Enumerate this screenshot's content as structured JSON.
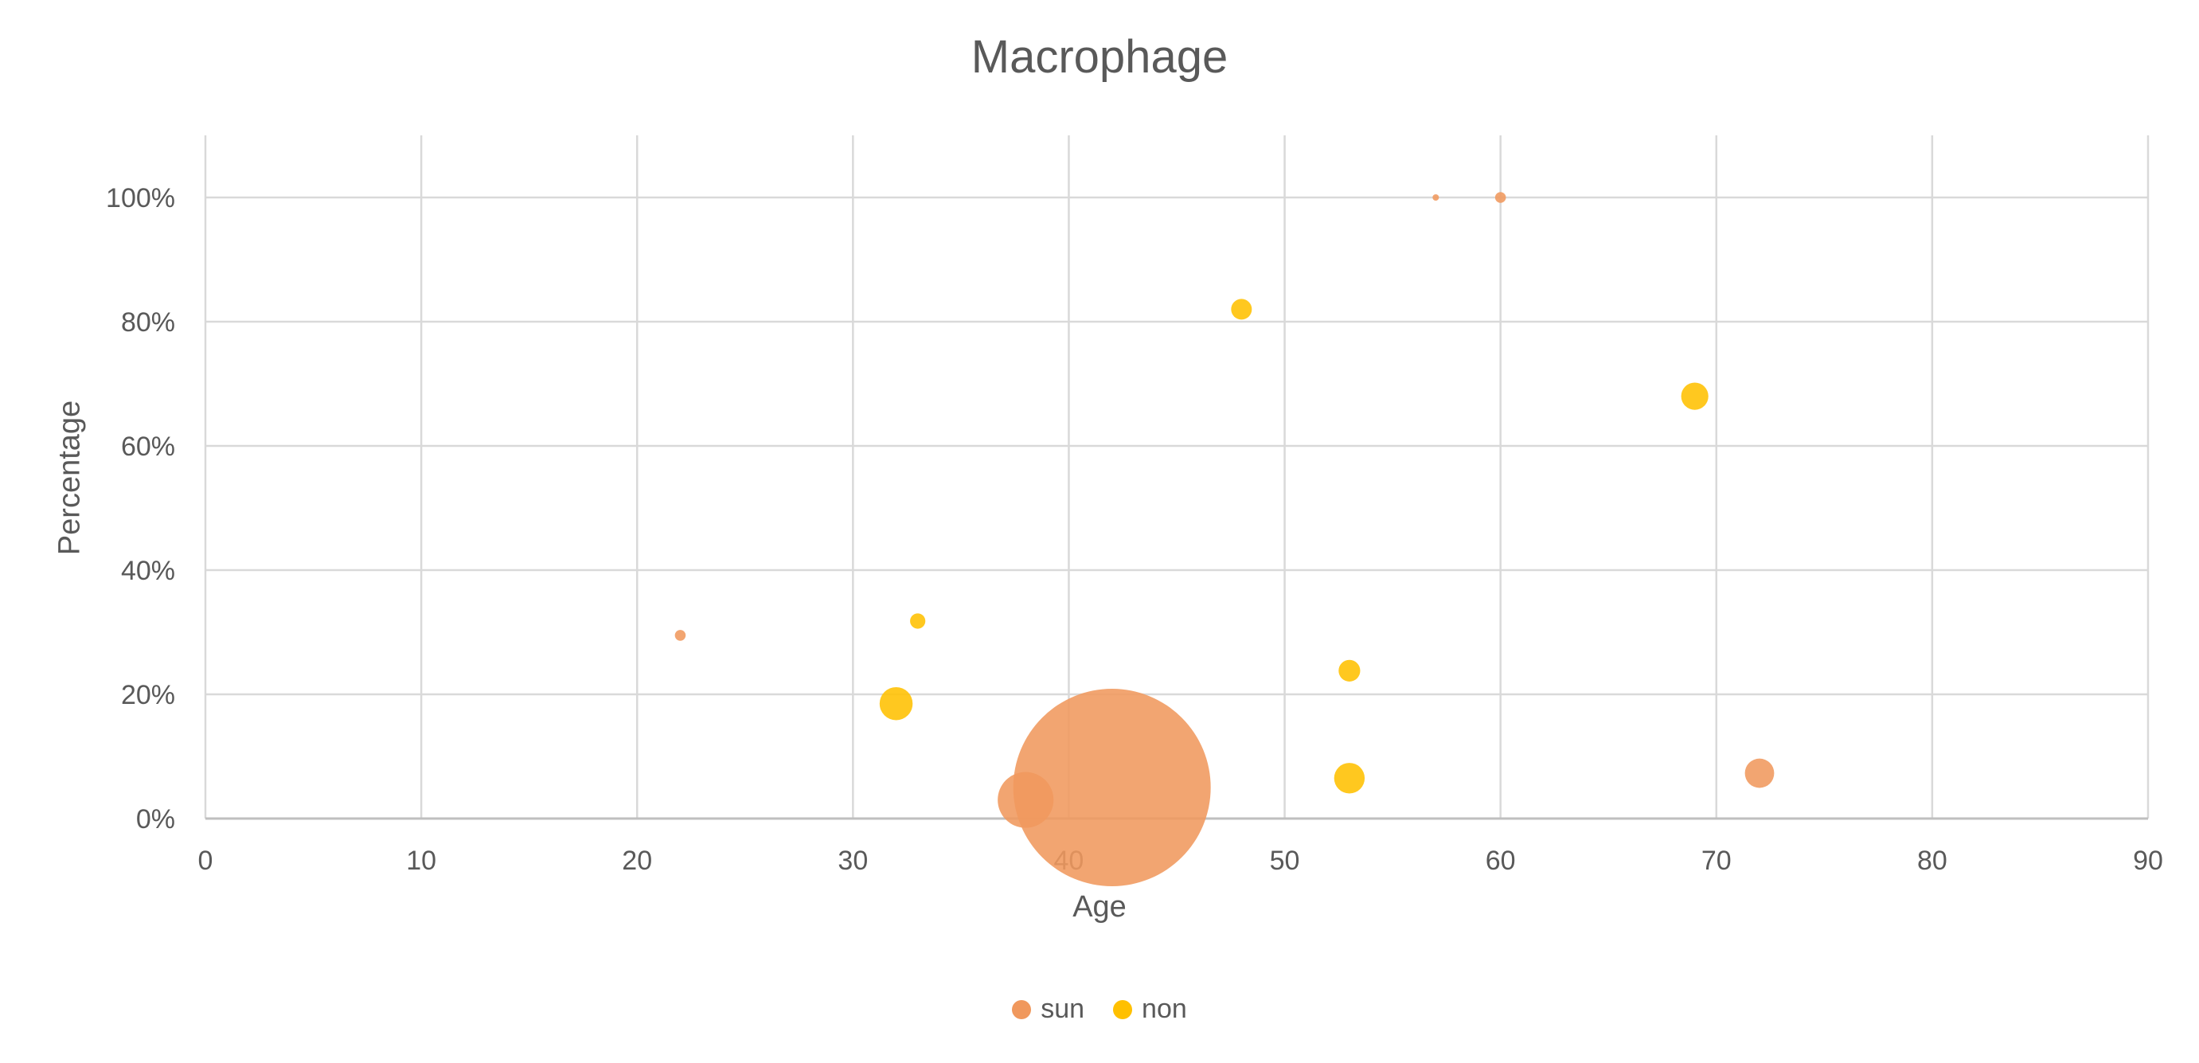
{
  "chart_data": {
    "type": "bubble",
    "title": "Macrophage",
    "xlabel": "Age",
    "ylabel": "Percentage",
    "xlim": [
      0,
      90
    ],
    "ylim": [
      0,
      1.1
    ],
    "xticks": [
      0,
      10,
      20,
      30,
      40,
      50,
      60,
      70,
      80,
      90
    ],
    "yticks": [
      0,
      0.2,
      0.4,
      0.6,
      0.8,
      1.0
    ],
    "ytick_labels": [
      "0%",
      "20%",
      "40%",
      "60%",
      "80%",
      "100%"
    ],
    "grid": true,
    "legend_position": "bottom",
    "series": [
      {
        "name": "sun",
        "color": "#F0985D",
        "points": [
          {
            "x": 22,
            "y": 0.295,
            "size": 0.3
          },
          {
            "x": 38,
            "y": 0.03,
            "size": 8
          },
          {
            "x": 42,
            "y": 0.05,
            "size": 100
          },
          {
            "x": 57,
            "y": 1.0,
            "size": 0.08
          },
          {
            "x": 60,
            "y": 1.0,
            "size": 0.3
          },
          {
            "x": 72,
            "y": 0.073,
            "size": 2.2
          }
        ]
      },
      {
        "name": "non",
        "color": "#FFC000",
        "points": [
          {
            "x": 32,
            "y": 0.185,
            "size": 2.8
          },
          {
            "x": 33,
            "y": 0.318,
            "size": 0.6
          },
          {
            "x": 48,
            "y": 0.82,
            "size": 1.1
          },
          {
            "x": 53,
            "y": 0.238,
            "size": 1.2
          },
          {
            "x": 53,
            "y": 0.065,
            "size": 2.4
          },
          {
            "x": 69,
            "y": 0.68,
            "size": 1.9
          }
        ]
      }
    ]
  }
}
